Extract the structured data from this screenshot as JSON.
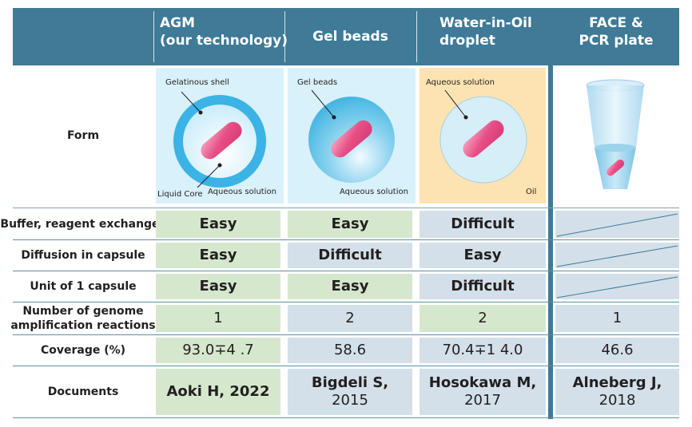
{
  "header": {
    "agm": [
      "AGM",
      "(our technology)"
    ],
    "gel": "Gel beads",
    "wio": [
      "Water-in-Oil",
      "droplet"
    ],
    "face": [
      "FACE &",
      "PCR plate"
    ]
  },
  "form": {
    "row_label": "Form",
    "agm_shell": "Gelatinous shell",
    "agm_core": "Liquid Core",
    "agm_aq": "Aqueous solution",
    "gel_label": "Gel beads",
    "gel_aq": "Aqueous solution",
    "wio_aq": "Aqueous solution",
    "wio_oil": "Oil"
  },
  "rows": {
    "buffer": {
      "label": "Buffer, reagent exchange",
      "agm": "Easy",
      "gel": "Easy",
      "wio": "Difficult"
    },
    "diffusion": {
      "label": "Diffusion in capsule",
      "agm": "Easy",
      "gel": "Difficult",
      "wio": "Easy"
    },
    "unit": {
      "label": "Unit of 1 capsule",
      "agm": "Easy",
      "gel": "Easy",
      "wio": "Difficult"
    },
    "genome": {
      "label": [
        "Number of genome",
        "amplification reactions"
      ],
      "agm": "1",
      "gel": "2",
      "wio": "2",
      "face": "1"
    },
    "coverage": {
      "label": "Coverage (%)",
      "agm": "93.0∓4 .7",
      "gel": "58.6",
      "wio": "70.4∓1 4.0",
      "face": "46.6"
    },
    "documents": {
      "label": "Documents",
      "agm": "Aoki H, 2022",
      "gel": [
        "Bigdeli S,",
        "2015"
      ],
      "wio": [
        "Hosokawa M,",
        "2017"
      ],
      "face": [
        "Alneberg J,",
        "2018"
      ]
    }
  }
}
